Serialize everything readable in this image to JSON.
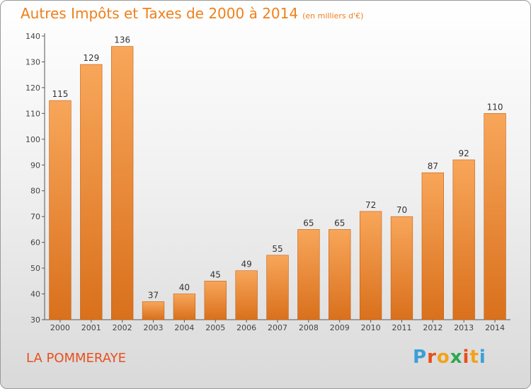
{
  "chart_data": {
    "type": "bar",
    "title": "Autres Impôts et Taxes de 2000 à 2014",
    "subtitle": "(en milliers d'€)",
    "categories": [
      "2000",
      "2001",
      "2002",
      "2003",
      "2004",
      "2005",
      "2006",
      "2007",
      "2008",
      "2009",
      "2010",
      "2011",
      "2012",
      "2013",
      "2014"
    ],
    "values": [
      115,
      129,
      136,
      37,
      40,
      45,
      49,
      55,
      65,
      65,
      72,
      70,
      87,
      92,
      110
    ],
    "xlabel": "",
    "ylabel": "",
    "ylim": [
      30,
      140
    ],
    "yticks": [
      30,
      40,
      50,
      60,
      70,
      80,
      90,
      100,
      110,
      120,
      130,
      140
    ],
    "grid": false,
    "colors": {
      "bar_light": "#f8a65a",
      "bar_dark": "#d9701c",
      "bar_edge": "#c45f10"
    }
  },
  "footer": {
    "commune": "LA POMMERAYE",
    "logo_letters": [
      "P",
      "r",
      "o",
      "x",
      "i",
      "t",
      "i"
    ],
    "logo_colors": [
      "#3a9fd8",
      "#e94e1b",
      "#f3a21a",
      "#2fa84f",
      "#e94e1b",
      "#f3a21a",
      "#3a9fd8"
    ],
    "logo_name": "Proxiti"
  }
}
